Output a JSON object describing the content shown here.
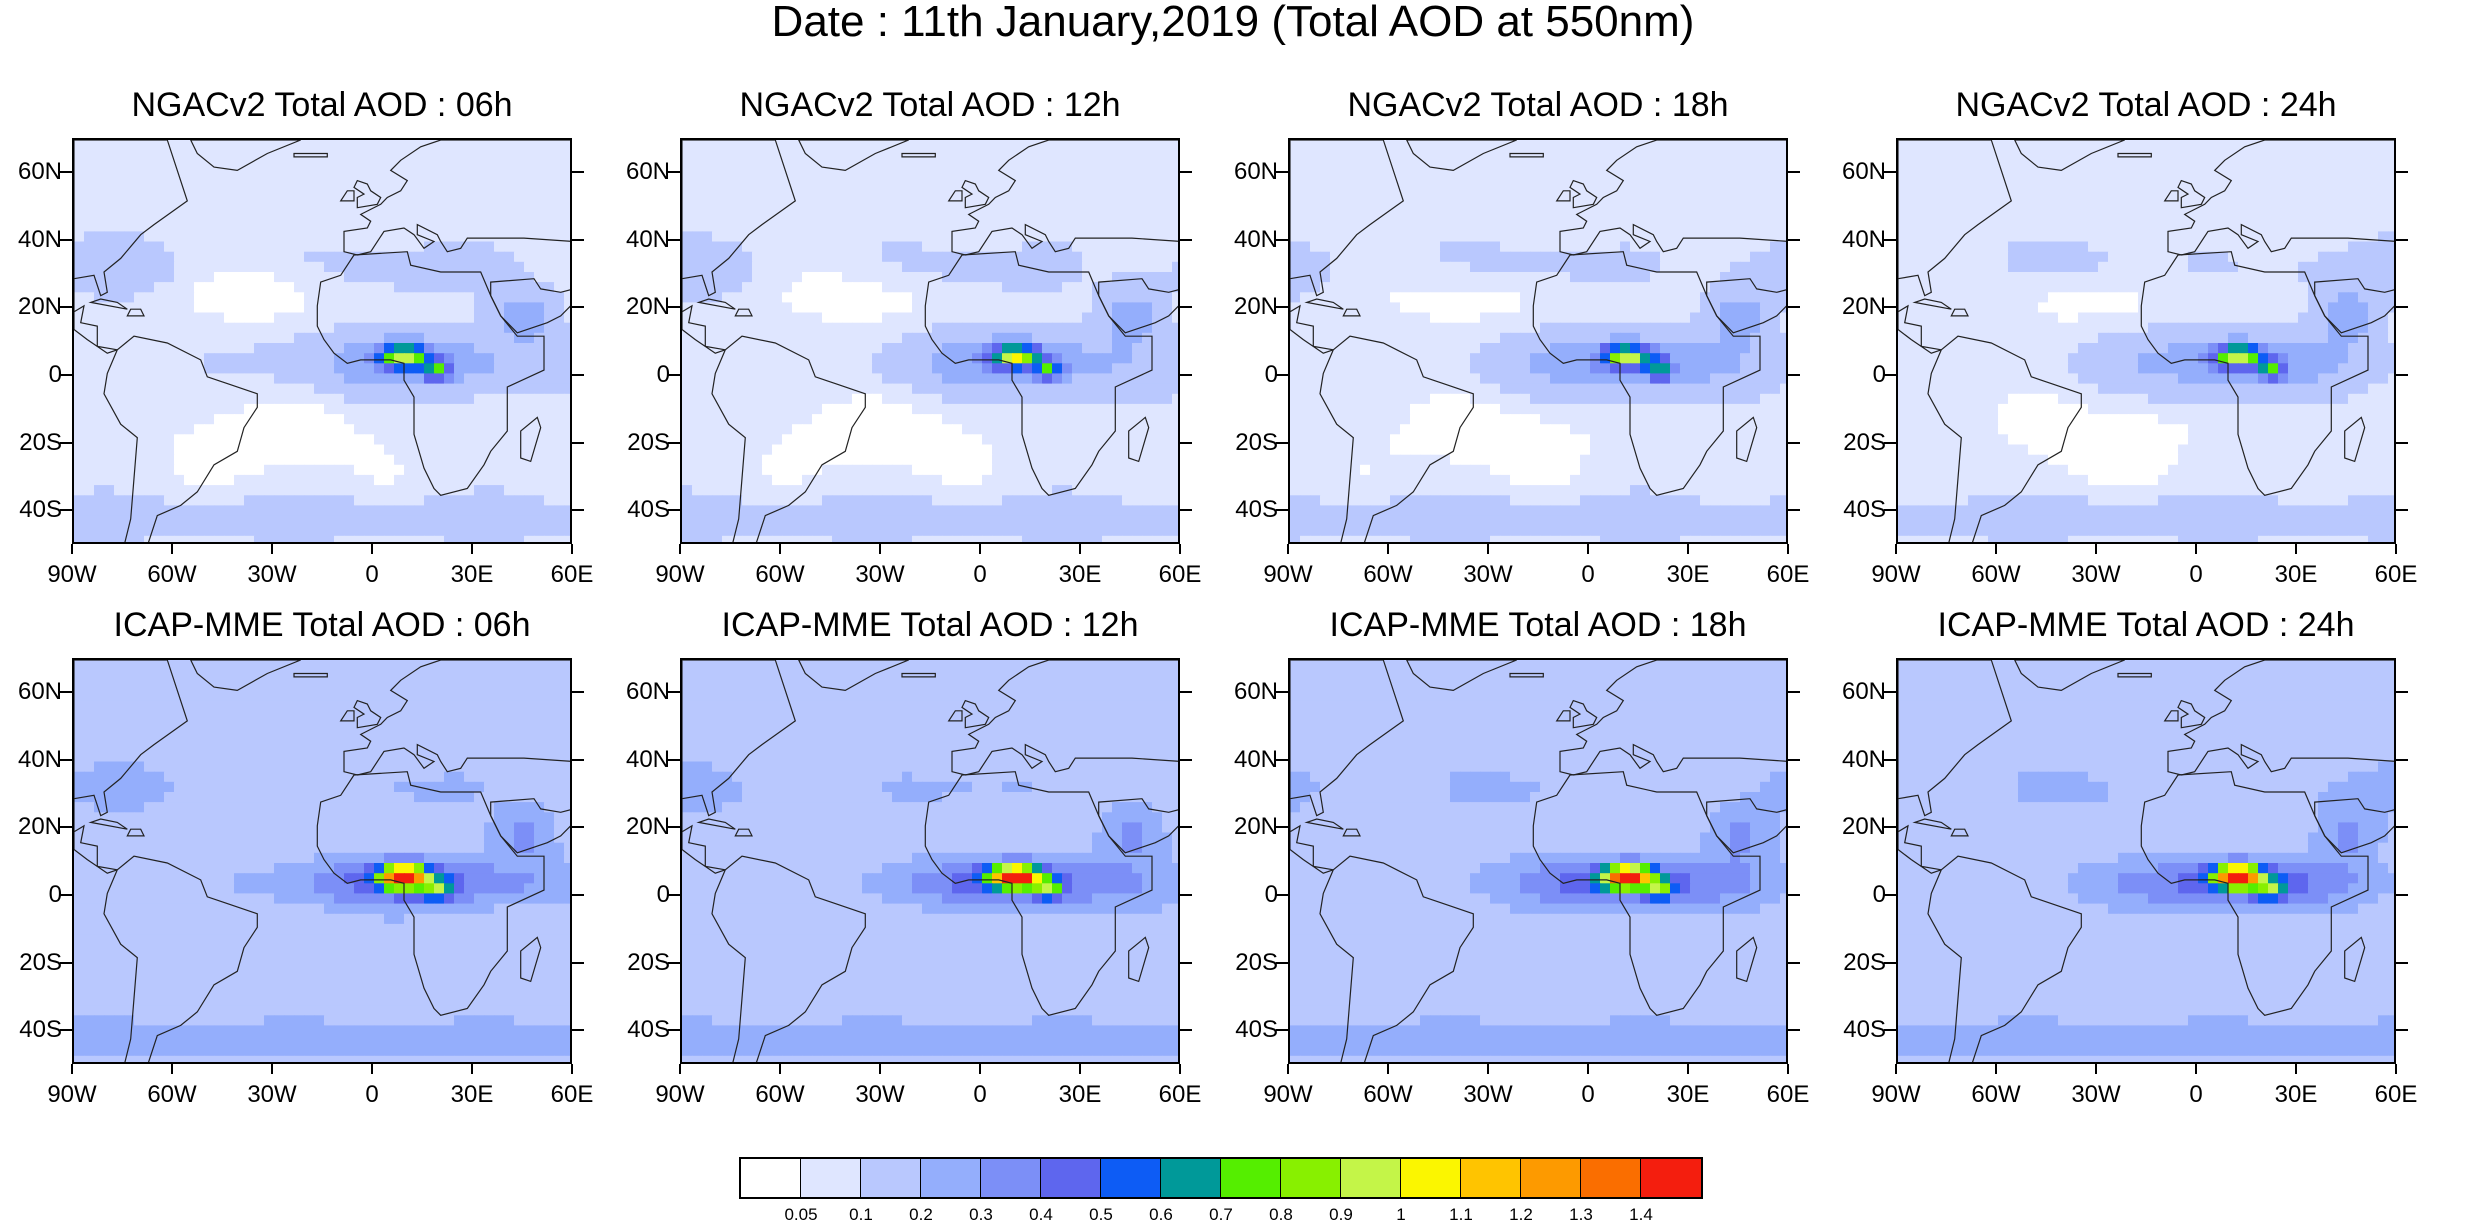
{
  "figure": {
    "title": "Date : 11th January,2019 (Total AOD at 550nm)"
  },
  "panels": [
    {
      "title": "NGACv2 Total AOD : 06h",
      "model": "ngac",
      "hour": 6
    },
    {
      "title": "NGACv2 Total AOD : 12h",
      "model": "ngac",
      "hour": 12
    },
    {
      "title": "NGACv2 Total AOD : 18h",
      "model": "ngac",
      "hour": 18
    },
    {
      "title": "NGACv2 Total AOD : 24h",
      "model": "ngac",
      "hour": 24
    },
    {
      "title": "ICAP-MME Total AOD : 06h",
      "model": "icap",
      "hour": 6
    },
    {
      "title": "ICAP-MME Total AOD : 12h",
      "model": "icap",
      "hour": 12
    },
    {
      "title": "ICAP-MME Total AOD : 18h",
      "model": "icap",
      "hour": 18
    },
    {
      "title": "ICAP-MME Total AOD : 24h",
      "model": "icap",
      "hour": 24
    }
  ],
  "axes": {
    "lat_labels": [
      "60N",
      "40N",
      "20N",
      "0",
      "20S",
      "40S"
    ],
    "lat_values": [
      60,
      40,
      20,
      0,
      -20,
      -40
    ],
    "lon_labels": [
      "90W",
      "60W",
      "30W",
      "0",
      "30E",
      "60E"
    ],
    "lon_values": [
      -90,
      -60,
      -30,
      0,
      30,
      60
    ],
    "lat_range": [
      -50,
      70
    ],
    "lon_range": [
      -90,
      60
    ]
  },
  "colorbar": {
    "labels": [
      "0.05",
      "0.1",
      "0.2",
      "0.3",
      "0.4",
      "0.5",
      "0.6",
      "0.7",
      "0.8",
      "0.9",
      "1",
      "1.1",
      "1.2",
      "1.3",
      "1.4"
    ],
    "colors": [
      "#ffffff",
      "#dfe6ff",
      "#b9c8fe",
      "#94aefc",
      "#7c8ff7",
      "#5e66ee",
      "#0d5cf5",
      "#009999",
      "#55ee00",
      "#88f000",
      "#c4f548",
      "#fbf600",
      "#ffc400",
      "#fd9a00",
      "#fa6e00",
      "#f41e0e"
    ]
  }
}
